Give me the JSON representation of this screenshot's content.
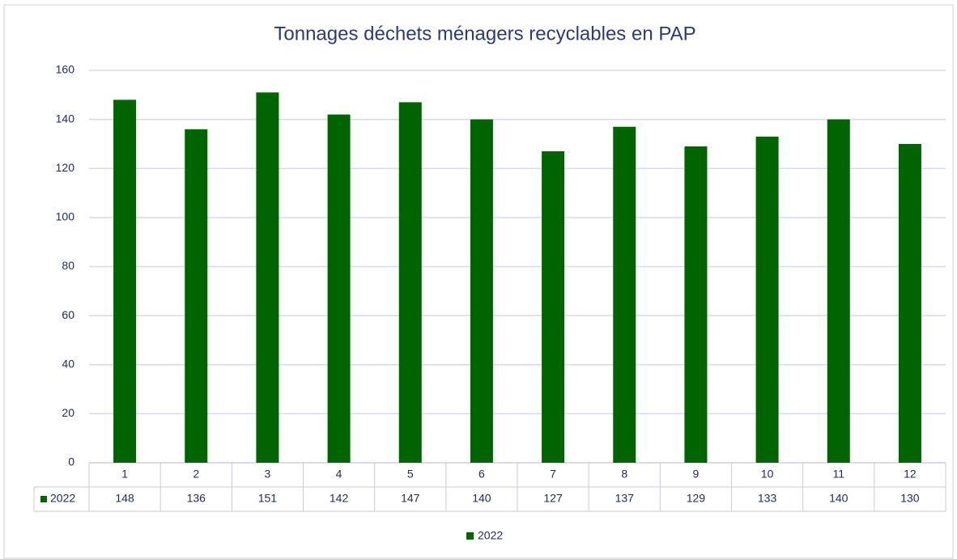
{
  "chart_data": {
    "type": "bar",
    "title": "Tonnages déchets ménagers recyclables en PAP",
    "categories": [
      "1",
      "2",
      "3",
      "4",
      "5",
      "6",
      "7",
      "8",
      "9",
      "10",
      "11",
      "12"
    ],
    "series": [
      {
        "name": "2022",
        "color": "#006400",
        "values": [
          148,
          136,
          151,
          142,
          147,
          140,
          127,
          137,
          129,
          133,
          140,
          130
        ]
      }
    ],
    "ylim": [
      0,
      160
    ],
    "yticks": [
      0,
      20,
      40,
      60,
      80,
      100,
      120,
      140,
      160
    ],
    "grid": true,
    "legend": "bottom"
  }
}
